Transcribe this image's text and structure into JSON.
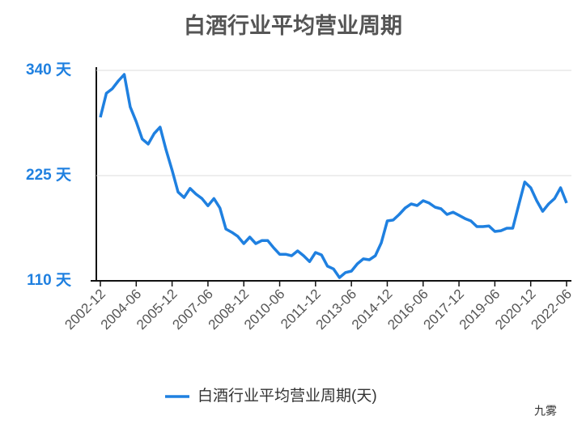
{
  "chart_data": {
    "type": "line",
    "title": "白酒行业平均营业周期",
    "categories": [
      "2002-12",
      null,
      null,
      null,
      null,
      null,
      "2004-06",
      null,
      null,
      null,
      null,
      null,
      "2005-12",
      null,
      null,
      null,
      null,
      null,
      "2007-06",
      null,
      null,
      null,
      null,
      null,
      "2008-12",
      null,
      null,
      null,
      null,
      null,
      "2010-06",
      null,
      null,
      null,
      null,
      null,
      "2011-12",
      null,
      null,
      null,
      null,
      null,
      "2013-06",
      null,
      null,
      null,
      null,
      null,
      "2014-12",
      null,
      null,
      null,
      null,
      null,
      "2016-06",
      null,
      null,
      null,
      null,
      null,
      "2017-12",
      null,
      null,
      null,
      null,
      null,
      "2019-06",
      null,
      null,
      null,
      null,
      null,
      "2020-12",
      null,
      null,
      null,
      null,
      null,
      "2022-06"
    ],
    "series": [
      {
        "name": "白酒行业平均营业周期(天)",
        "color": "#1f80e0",
        "values": [
          288.7,
          315,
          320,
          328.5,
          335.6,
          300,
          284,
          265,
          259.5,
          271,
          278,
          253,
          231,
          207,
          201,
          211,
          204.7,
          200,
          192,
          200,
          189.6,
          166.6,
          163,
          158.6,
          150.7,
          157.8,
          150.7,
          154,
          154,
          146,
          139,
          139,
          137.4,
          142.7,
          137.4,
          131,
          141,
          138.3,
          126,
          123,
          113.5,
          119,
          120.6,
          128.6,
          134,
          133,
          137.4,
          151.6,
          175.5,
          176.4,
          182.5,
          189.6,
          194,
          192.3,
          197.6,
          195,
          190.5,
          188.7,
          182.5,
          185,
          181.6,
          178,
          175.5,
          169.3,
          169.3,
          170,
          164,
          164.8,
          167.5,
          167.5,
          193,
          218,
          211.7,
          197.6,
          186,
          194,
          200,
          211.7,
          195
        ]
      }
    ],
    "ylim": [
      110,
      340
    ],
    "yticks": [
      {
        "value": 110,
        "label": "110 天"
      },
      {
        "value": 225,
        "label": "225 天"
      },
      {
        "value": 340,
        "label": "340 天"
      }
    ],
    "grid": true,
    "watermark": "九雾"
  }
}
